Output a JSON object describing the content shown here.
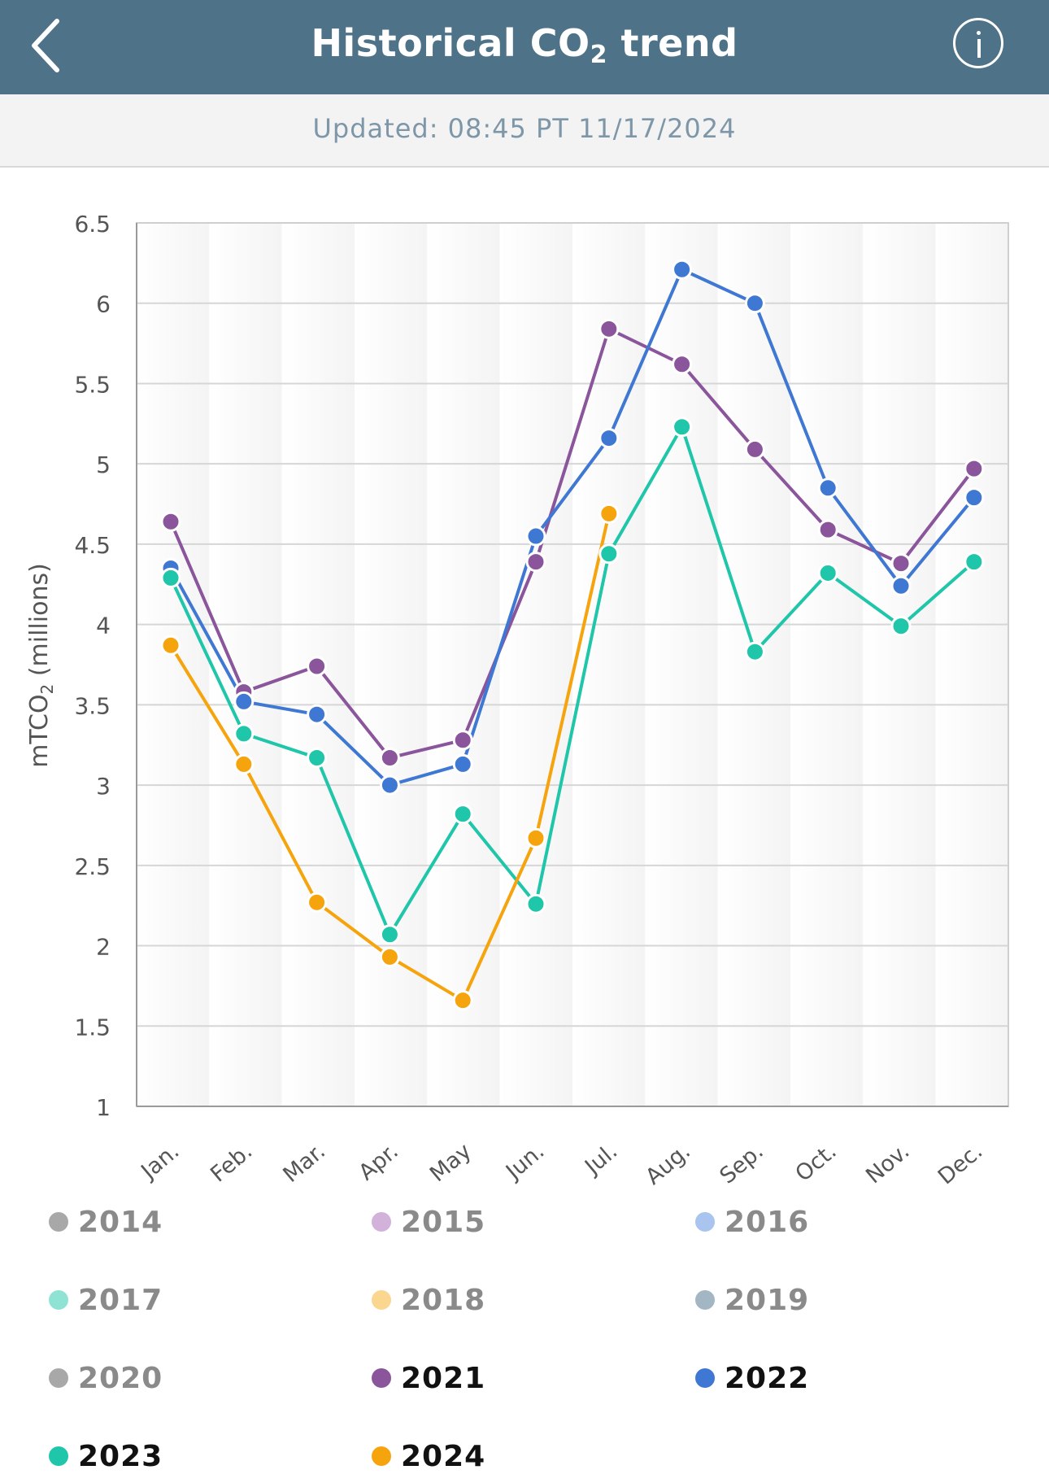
{
  "header": {
    "title": "Historical CO",
    "title_sub": "2",
    "title_suffix": " trend",
    "back_icon": "chevron-left-icon",
    "info_icon": "info-icon"
  },
  "updated_text": "Updated: 08:45 PT 11/17/2024",
  "colors": {
    "header_bg": "#4e7287",
    "series_2021": "#8b559c",
    "series_2022": "#3f78d3",
    "series_2023": "#1fc6a9",
    "series_2024": "#f6a40e"
  },
  "chart_data": {
    "type": "line",
    "ylabel_main": "mTCO",
    "ylabel_sub": "2",
    "ylabel_suffix": " (millions)",
    "ylim": [
      1,
      6.5
    ],
    "yticks": [
      "1",
      "1.5",
      "2",
      "2.5",
      "3",
      "3.5",
      "4",
      "4.5",
      "5",
      "5.5",
      "6",
      "6.5"
    ],
    "ytick_values": [
      1,
      1.5,
      2,
      2.5,
      3,
      3.5,
      4,
      4.5,
      5,
      5.5,
      6,
      6.5
    ],
    "categories": [
      "Jan.",
      "Feb.",
      "Mar.",
      "Apr.",
      "May",
      "Jun.",
      "Jul.",
      "Aug.",
      "Sep.",
      "Oct.",
      "Nov.",
      "Dec."
    ],
    "grid": true,
    "legend_position": "bottom",
    "series": [
      {
        "name": "2021",
        "color": "#8b559c",
        "values": [
          4.64,
          3.58,
          3.74,
          3.17,
          3.28,
          4.39,
          5.84,
          5.62,
          5.09,
          4.59,
          4.38,
          4.97
        ]
      },
      {
        "name": "2022",
        "color": "#3f78d3",
        "values": [
          4.35,
          3.52,
          3.44,
          3.0,
          3.13,
          4.55,
          5.16,
          6.21,
          6.0,
          4.85,
          4.24,
          4.79
        ]
      },
      {
        "name": "2023",
        "color": "#1fc6a9",
        "values": [
          4.29,
          3.32,
          3.17,
          2.07,
          2.82,
          2.26,
          4.44,
          5.23,
          3.83,
          4.32,
          3.99,
          4.39
        ]
      },
      {
        "name": "2024",
        "color": "#f6a40e",
        "values": [
          3.87,
          3.13,
          2.27,
          1.93,
          1.66,
          2.67,
          4.69,
          null,
          null,
          null,
          null,
          null
        ]
      }
    ]
  },
  "legend": [
    {
      "label": "2014",
      "color": "#a8a8a8",
      "active": false
    },
    {
      "label": "2015",
      "color": "#d2b2da",
      "active": false
    },
    {
      "label": "2016",
      "color": "#a8c4ef",
      "active": false
    },
    {
      "label": "2017",
      "color": "#8fe3d4",
      "active": false
    },
    {
      "label": "2018",
      "color": "#fbd68f",
      "active": false
    },
    {
      "label": "2019",
      "color": "#a3b6c3",
      "active": false
    },
    {
      "label": "2020",
      "color": "#a8a8a8",
      "active": false
    },
    {
      "label": "2021",
      "color": "#8b559c",
      "active": true
    },
    {
      "label": "2022",
      "color": "#3f78d3",
      "active": true
    },
    {
      "label": "2023",
      "color": "#1fc6a9",
      "active": true
    },
    {
      "label": "2024",
      "color": "#f6a40e",
      "active": true
    }
  ]
}
